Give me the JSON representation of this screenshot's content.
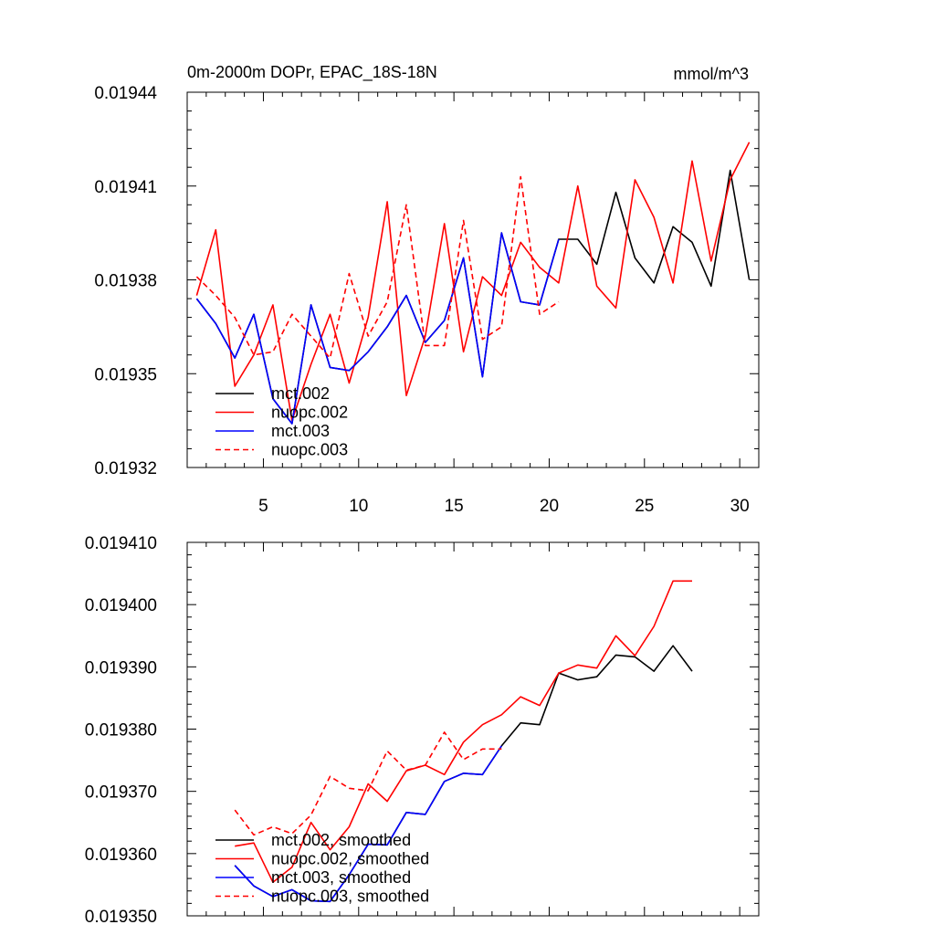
{
  "chart_data": [
    {
      "type": "line",
      "title": "0m-2000m DOPr, EPAC_18S-18N",
      "units": "mmol/m^3",
      "xlabel": "",
      "ylabel": "",
      "xlim": [
        1,
        31
      ],
      "ylim": [
        0.01932,
        0.01944
      ],
      "xticks": [
        5,
        10,
        15,
        20,
        25,
        30
      ],
      "xtick_labels": [
        "5",
        "10",
        "15",
        "20",
        "25",
        "30"
      ],
      "yticks": [
        0.01932,
        0.01935,
        0.01938,
        0.01941,
        0.01944
      ],
      "ytick_labels": [
        "0.01932",
        "0.01935",
        "0.01938",
        "0.01941",
        "0.01944"
      ],
      "legend_position": "bottom-left",
      "series": [
        {
          "name": "mct.002",
          "color": "#000000",
          "dash": "solid",
          "x": [
            1.5,
            2.5,
            3.5,
            4.5,
            5.5,
            6.5,
            7.5,
            8.5,
            9.5,
            10.5,
            11.5,
            12.5,
            13.5,
            14.5,
            15.5,
            16.5,
            17.5,
            18.5,
            19.5,
            20.5,
            21.5,
            22.5,
            23.5,
            24.5,
            25.5,
            26.5,
            27.5,
            28.5,
            29.5,
            30.5
          ],
          "values": [
            0.019374,
            0.019366,
            0.019355,
            0.019369,
            0.019342,
            0.019334,
            0.019372,
            0.019352,
            0.019351,
            0.019357,
            0.019365,
            0.019375,
            0.01936,
            0.019367,
            0.019387,
            0.019349,
            0.019395,
            0.019373,
            0.019372,
            0.019393,
            0.019393,
            0.019385,
            0.019408,
            0.019387,
            0.019379,
            0.019397,
            0.019392,
            0.019378,
            0.019415,
            0.01938
          ]
        },
        {
          "name": "nuopc.002",
          "color": "#ff0000",
          "dash": "solid",
          "x": [
            1.5,
            2.5,
            3.5,
            4.5,
            5.5,
            6.5,
            7.5,
            8.5,
            9.5,
            10.5,
            11.5,
            12.5,
            13.5,
            14.5,
            15.5,
            16.5,
            17.5,
            18.5,
            19.5,
            20.5,
            21.5,
            22.5,
            23.5,
            24.5,
            25.5,
            26.5,
            27.5,
            28.5,
            29.5,
            30.5
          ],
          "values": [
            0.019375,
            0.019396,
            0.019346,
            0.019356,
            0.019372,
            0.019335,
            0.019353,
            0.019369,
            0.019347,
            0.019368,
            0.019405,
            0.019343,
            0.019362,
            0.019398,
            0.019357,
            0.019381,
            0.019375,
            0.019392,
            0.019384,
            0.019379,
            0.01941,
            0.019378,
            0.019371,
            0.019412,
            0.0194,
            0.019379,
            0.019418,
            0.019386,
            0.019412,
            0.019424
          ]
        },
        {
          "name": "mct.003",
          "color": "#0000ff",
          "dash": "solid",
          "x": [
            1.5,
            2.5,
            3.5,
            4.5,
            5.5,
            6.5,
            7.5,
            8.5,
            9.5,
            10.5,
            11.5,
            12.5,
            13.5,
            14.5,
            15.5,
            16.5,
            17.5,
            18.5,
            19.5,
            20.5
          ],
          "values": [
            0.019374,
            0.019366,
            0.019355,
            0.019369,
            0.019342,
            0.019334,
            0.019372,
            0.019352,
            0.019351,
            0.019357,
            0.019365,
            0.019375,
            0.01936,
            0.019367,
            0.019387,
            0.019349,
            0.019395,
            0.019373,
            0.019372,
            0.019393
          ]
        },
        {
          "name": "nuopc.003",
          "color": "#ff0000",
          "dash": "dashed",
          "x": [
            1.5,
            2.5,
            3.5,
            4.5,
            5.5,
            6.5,
            7.5,
            8.5,
            9.5,
            10.5,
            11.5,
            12.5,
            13.5,
            14.5,
            15.5,
            16.5,
            17.5,
            18.5,
            19.5,
            20.5
          ],
          "values": [
            0.019381,
            0.019375,
            0.019368,
            0.019356,
            0.019357,
            0.019369,
            0.019362,
            0.019355,
            0.019382,
            0.019362,
            0.019373,
            0.019404,
            0.019359,
            0.019359,
            0.019399,
            0.019361,
            0.019365,
            0.019413,
            0.019369,
            0.019373
          ]
        }
      ]
    },
    {
      "type": "line",
      "title": "",
      "xlabel": "",
      "ylabel": "",
      "xlim": [
        1,
        31
      ],
      "ylim": [
        0.01935,
        0.01941
      ],
      "xticks": [
        5,
        10,
        15,
        20,
        25,
        30
      ],
      "xtick_labels": [],
      "yticks": [
        0.01935,
        0.01936,
        0.01937,
        0.01938,
        0.01939,
        0.0194,
        0.01941
      ],
      "ytick_labels": [
        "0.019350",
        "0.019360",
        "0.019370",
        "0.019380",
        "0.019390",
        "0.019400",
        "0.019410"
      ],
      "legend_position": "bottom-left",
      "series": [
        {
          "name": "mct.002, smoothed",
          "color": "#000000",
          "dash": "solid",
          "x": [
            3.5,
            4.5,
            5.5,
            6.5,
            7.5,
            8.5,
            9.5,
            10.5,
            11.5,
            12.5,
            13.5,
            14.5,
            15.5,
            16.5,
            17.5,
            18.5,
            19.5,
            20.5,
            21.5,
            22.5,
            23.5,
            24.5,
            25.5,
            26.5,
            27.5
          ],
          "values": [
            0.0193581,
            0.0193548,
            0.0193531,
            0.0193542,
            0.0193524,
            0.0193523,
            0.0193566,
            0.0193615,
            0.0193614,
            0.0193666,
            0.0193663,
            0.0193716,
            0.0193729,
            0.0193727,
            0.0193773,
            0.019381,
            0.0193807,
            0.019389,
            0.0193879,
            0.0193884,
            0.0193919,
            0.0193916,
            0.0193893,
            0.0193934,
            0.0193893
          ]
        },
        {
          "name": "nuopc.002, smoothed",
          "color": "#ff0000",
          "dash": "solid",
          "x": [
            3.5,
            4.5,
            5.5,
            6.5,
            7.5,
            8.5,
            9.5,
            10.5,
            11.5,
            12.5,
            13.5,
            14.5,
            15.5,
            16.5,
            17.5,
            18.5,
            19.5,
            20.5,
            21.5,
            22.5,
            23.5,
            24.5,
            25.5,
            26.5,
            27.5
          ],
          "values": [
            0.0193612,
            0.0193617,
            0.0193554,
            0.0193578,
            0.019365,
            0.0193606,
            0.0193643,
            0.0193712,
            0.0193684,
            0.0193733,
            0.0193742,
            0.0193727,
            0.0193779,
            0.0193807,
            0.0193823,
            0.0193852,
            0.0193838,
            0.019389,
            0.0193903,
            0.0193898,
            0.019395,
            0.0193918,
            0.0193965,
            0.0194038,
            0.0194038
          ]
        },
        {
          "name": "mct.003, smoothed",
          "color": "#0000ff",
          "dash": "solid",
          "x": [
            3.5,
            4.5,
            5.5,
            6.5,
            7.5,
            8.5,
            9.5,
            10.5,
            11.5,
            12.5,
            13.5,
            14.5,
            15.5,
            16.5,
            17.5
          ],
          "values": [
            0.0193581,
            0.0193548,
            0.0193531,
            0.0193542,
            0.0193524,
            0.0193523,
            0.0193566,
            0.0193615,
            0.0193614,
            0.0193666,
            0.0193663,
            0.0193716,
            0.0193729,
            0.0193727,
            0.0193773
          ]
        },
        {
          "name": "nuopc.003, smoothed",
          "color": "#ff0000",
          "dash": "dashed",
          "x": [
            3.5,
            4.5,
            5.5,
            6.5,
            7.5,
            8.5,
            9.5,
            10.5,
            11.5,
            12.5,
            13.5,
            14.5,
            15.5,
            16.5,
            17.5
          ],
          "values": [
            0.019367,
            0.019363,
            0.0193643,
            0.0193632,
            0.0193662,
            0.0193724,
            0.0193705,
            0.0193701,
            0.0193765,
            0.0193734,
            0.0193742,
            0.0193795,
            0.0193751,
            0.0193768,
            0.0193768
          ]
        }
      ]
    }
  ]
}
